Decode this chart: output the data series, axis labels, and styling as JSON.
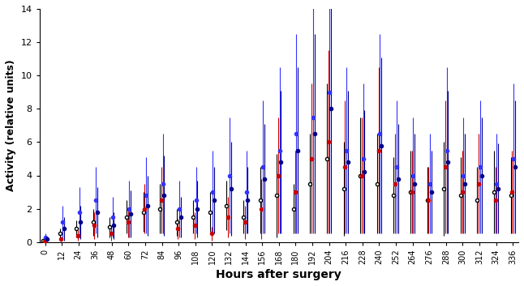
{
  "xlabel": "Hours after surgery",
  "ylabel": "Activity (relative units)",
  "ylim": [
    0,
    14
  ],
  "yticks": [
    0,
    2,
    4,
    6,
    8,
    10,
    12,
    14
  ],
  "xlim": [
    -4,
    340
  ],
  "xtick_values": [
    0,
    12,
    24,
    36,
    48,
    60,
    72,
    84,
    96,
    108,
    120,
    132,
    144,
    156,
    168,
    180,
    192,
    204,
    216,
    228,
    240,
    252,
    264,
    276,
    288,
    300,
    312,
    324,
    336
  ],
  "series": {
    "black": {
      "color": "#000000",
      "marker": "o",
      "filled": false,
      "means": [
        0.1,
        0.5,
        0.8,
        1.2,
        0.9,
        1.5,
        1.8,
        2.0,
        1.2,
        1.5,
        1.8,
        2.2,
        1.5,
        2.5,
        2.8,
        2.0,
        3.5,
        5.0,
        3.2,
        4.0,
        3.5,
        2.8,
        3.0,
        2.5,
        3.2,
        2.8,
        2.5,
        3.0,
        2.8
      ],
      "errors": [
        0.1,
        0.3,
        0.5,
        0.8,
        0.6,
        1.0,
        1.2,
        1.5,
        0.8,
        1.0,
        1.2,
        1.5,
        1.0,
        2.0,
        2.5,
        1.5,
        3.0,
        4.5,
        2.8,
        3.5,
        3.0,
        2.3,
        2.5,
        2.0,
        2.8,
        2.3,
        2.0,
        2.5,
        2.3
      ]
    },
    "red": {
      "color": "#cc0000",
      "marker": "o",
      "filled": true,
      "means": [
        0.05,
        0.2,
        0.4,
        1.0,
        0.5,
        1.2,
        2.0,
        2.5,
        0.8,
        1.0,
        0.5,
        1.5,
        1.2,
        2.0,
        4.0,
        3.0,
        5.0,
        6.0,
        4.5,
        4.0,
        5.5,
        3.5,
        3.0,
        2.5,
        4.5,
        3.0,
        3.5,
        2.5,
        3.0
      ],
      "errors": [
        0.05,
        0.15,
        0.3,
        0.8,
        0.4,
        0.9,
        1.5,
        2.0,
        0.6,
        0.8,
        0.4,
        1.2,
        1.0,
        1.8,
        3.5,
        2.5,
        4.5,
        5.5,
        4.0,
        3.5,
        5.0,
        3.0,
        2.5,
        2.0,
        4.0,
        2.5,
        3.0,
        2.0,
        2.5
      ]
    },
    "blue_light": {
      "color": "#3333ff",
      "marker": "o",
      "filled": true,
      "means": [
        0.3,
        1.2,
        1.8,
        2.5,
        1.5,
        2.0,
        2.8,
        3.5,
        2.0,
        2.5,
        3.0,
        4.0,
        3.0,
        4.5,
        5.5,
        6.5,
        7.5,
        9.0,
        5.5,
        5.0,
        6.5,
        4.5,
        4.0,
        3.5,
        5.5,
        4.0,
        4.5,
        3.5,
        5.0
      ],
      "errors": [
        0.2,
        1.0,
        1.5,
        2.0,
        1.2,
        1.7,
        2.3,
        3.0,
        1.7,
        2.0,
        2.5,
        3.5,
        2.5,
        4.0,
        5.0,
        6.0,
        7.0,
        8.5,
        5.0,
        4.5,
        6.0,
        4.0,
        3.5,
        3.0,
        5.0,
        3.5,
        4.0,
        3.0,
        4.5
      ]
    },
    "dark_blue": {
      "color": "#00008b",
      "marker": "o",
      "filled": true,
      "means": [
        0.2,
        0.8,
        1.2,
        1.8,
        1.0,
        1.7,
        2.2,
        2.8,
        1.5,
        2.0,
        2.5,
        3.2,
        2.5,
        3.8,
        4.8,
        5.5,
        6.5,
        8.0,
        4.8,
        4.2,
        5.8,
        3.8,
        3.5,
        3.0,
        4.8,
        3.5,
        4.0,
        3.2,
        4.5
      ],
      "errors": [
        0.15,
        0.7,
        1.0,
        1.5,
        0.8,
        1.4,
        1.8,
        2.4,
        1.2,
        1.7,
        2.0,
        2.8,
        2.0,
        3.3,
        4.3,
        5.0,
        6.0,
        7.5,
        4.3,
        3.7,
        5.3,
        3.3,
        3.0,
        2.5,
        4.3,
        3.0,
        3.5,
        2.7,
        4.0
      ]
    }
  },
  "figsize": [
    6.46,
    3.53
  ],
  "dpi": 100
}
